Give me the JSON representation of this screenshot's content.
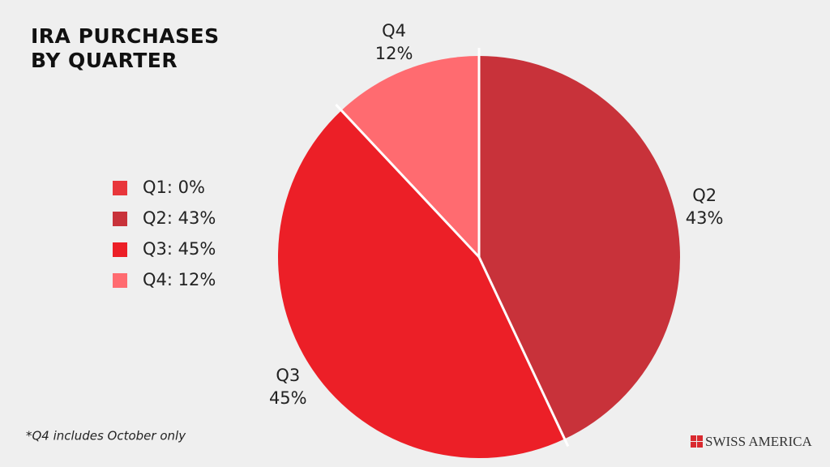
{
  "chart_data": {
    "type": "pie",
    "title": "IRA PURCHASES BY QUARTER",
    "categories": [
      "Q1",
      "Q2",
      "Q3",
      "Q4"
    ],
    "values": [
      0,
      43,
      45,
      12
    ],
    "value_labels": [
      null,
      "43%",
      "45%",
      "12%"
    ],
    "legend_labels": [
      "Q1: 0%",
      "Q2: 43%",
      "Q3: 45%",
      "Q4: 12%"
    ],
    "colors": [
      "#e8363b",
      "#c8323a",
      "#ec1f27",
      "#ff6b70"
    ],
    "footnote": "*Q4 includes October only",
    "logo": "SWISS AMERICA"
  }
}
